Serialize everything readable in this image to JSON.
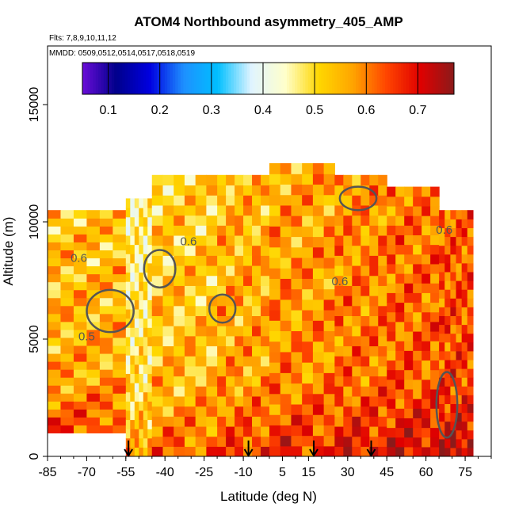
{
  "chart_data": {
    "type": "heatmap",
    "title": "ATOM4 Northbound asymmetry_405_AMP",
    "flights_note": "Flts: 7,8,9,10,11,12",
    "dates_note": "MMDD: 0509,0512,0514,0517,0518,0519",
    "xlabel": "Latitude (deg N)",
    "ylabel": "Altitude (m)",
    "xlim": [
      -85,
      85
    ],
    "ylim": [
      0,
      17500
    ],
    "x_ticks": [
      -85,
      -70,
      -55,
      -40,
      -25,
      -10,
      5,
      15,
      30,
      45,
      60,
      75
    ],
    "y_ticks": [
      0,
      5000,
      10000,
      15000
    ],
    "colorbar": {
      "range": [
        0.05,
        0.77
      ],
      "ticks": [
        0.1,
        0.2,
        0.3,
        0.4,
        0.5,
        0.6,
        0.7
      ],
      "colors": [
        "#6a0dd8",
        "#00008b",
        "#0000e0",
        "#1e90ff",
        "#00bfff",
        "#e0f4ff",
        "#ffffcc",
        "#ffd700",
        "#ffa500",
        "#ff4500",
        "#e00000",
        "#8b1a1a"
      ]
    },
    "contour_labels": [
      {
        "text": "0.6",
        "x": -73,
        "y": 8300
      },
      {
        "text": "0.5",
        "x": -70,
        "y": 4950
      },
      {
        "text": "0.6",
        "x": -31,
        "y": 9000
      },
      {
        "text": "0.6",
        "x": 27,
        "y": 7300
      },
      {
        "text": "0.6",
        "x": 67,
        "y": 9500
      }
    ],
    "flight_markers_lat": [
      -54,
      -8,
      17,
      39
    ],
    "profile_bands": [
      {
        "lat_min": -85,
        "lat_max": -55,
        "alt_min": 1000,
        "alt_max": 10500,
        "value": 0.57
      },
      {
        "lat_min": -55,
        "lat_max": -45,
        "alt_min": 0,
        "alt_max": 11000,
        "value": 0.5
      },
      {
        "lat_min": -45,
        "lat_max": -20,
        "alt_min": 0,
        "alt_max": 12000,
        "value": 0.55
      },
      {
        "lat_min": -20,
        "lat_max": 0,
        "alt_min": 0,
        "alt_max": 12000,
        "value": 0.58
      },
      {
        "lat_min": 0,
        "lat_max": 25,
        "alt_min": 0,
        "alt_max": 12500,
        "value": 0.6
      },
      {
        "lat_min": 25,
        "lat_max": 45,
        "alt_min": 0,
        "alt_max": 12000,
        "value": 0.62
      },
      {
        "lat_min": 45,
        "lat_max": 65,
        "alt_min": 0,
        "alt_max": 11500,
        "value": 0.64
      },
      {
        "lat_min": 65,
        "lat_max": 78,
        "alt_min": 0,
        "alt_max": 10500,
        "value": 0.66
      }
    ]
  }
}
